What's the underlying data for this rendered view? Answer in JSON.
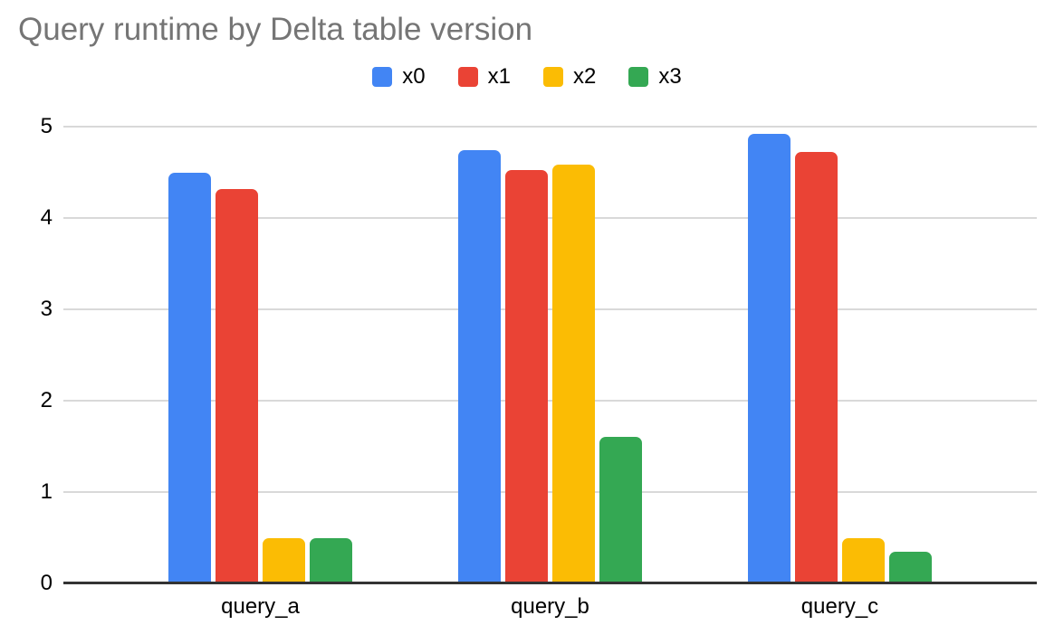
{
  "page": {
    "background": "#ffffff"
  },
  "chart_data": {
    "type": "bar",
    "title": "Query runtime by Delta table version",
    "categories": [
      "query_a",
      "query_b",
      "query_c"
    ],
    "series": [
      {
        "name": "x0",
        "color": "#4285F4",
        "values": [
          4.5,
          4.74,
          4.92
        ]
      },
      {
        "name": "x1",
        "color": "#EA4335",
        "values": [
          4.32,
          4.52,
          4.72
        ]
      },
      {
        "name": "x2",
        "color": "#FBBC04",
        "values": [
          0.5,
          4.58,
          0.5
        ]
      },
      {
        "name": "x3",
        "color": "#34A853",
        "values": [
          0.5,
          1.6,
          0.35
        ]
      }
    ],
    "xlabel": "",
    "ylabel": "",
    "ylim": [
      0,
      5
    ],
    "yticks": [
      0,
      1,
      2,
      3,
      4,
      5
    ],
    "grid": true,
    "legend_position": "top",
    "colors": {
      "title": "#757575",
      "axis_text": "#000000",
      "gridline": "#d9d9d9",
      "baseline": "#333333"
    }
  }
}
